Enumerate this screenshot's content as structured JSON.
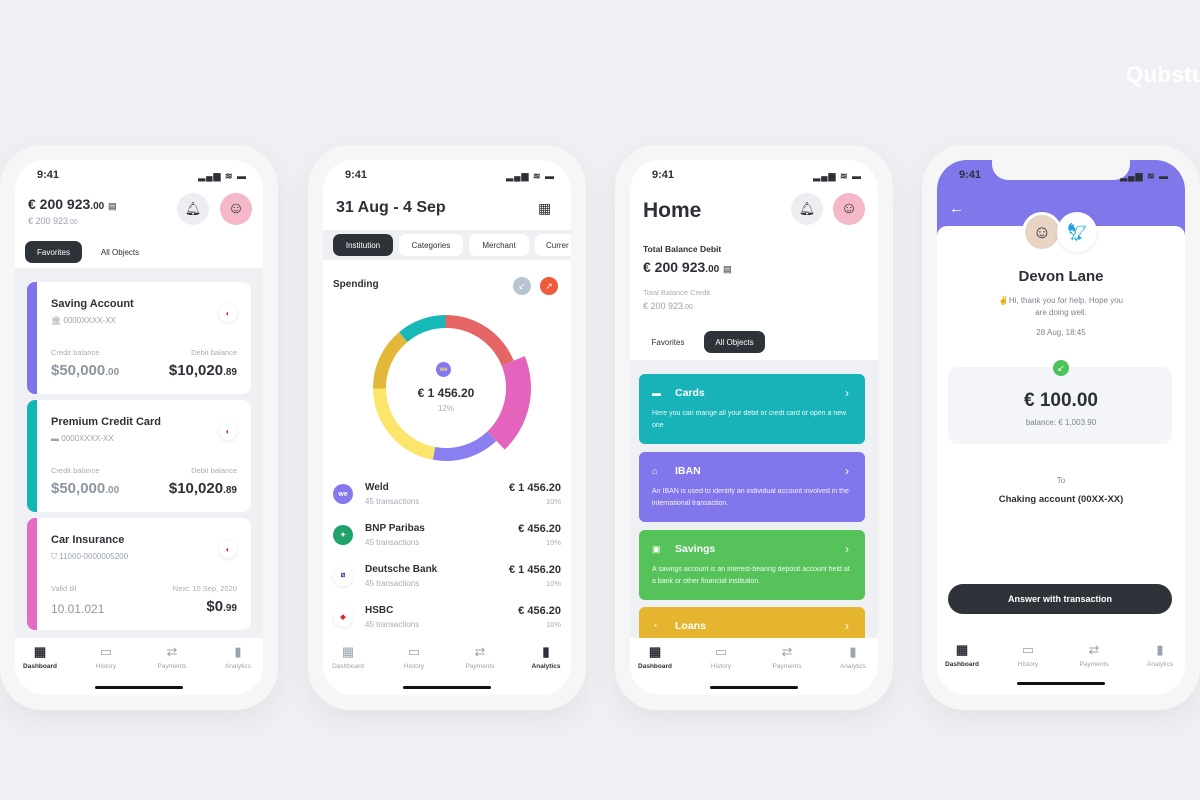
{
  "brand": "Qubstu",
  "status": {
    "time": "9:41",
    "signal": "▂▄▆ ≋ ▬"
  },
  "nav": [
    {
      "label": "Dashboard",
      "icon": "▦"
    },
    {
      "label": "History",
      "icon": "▭"
    },
    {
      "label": "Payments",
      "icon": "⇄"
    },
    {
      "label": "Analytics",
      "icon": "▮"
    }
  ],
  "dashboard": {
    "balance_main": "€ 200 923",
    "balance_main_cents": ".00",
    "balance_sub": "€ 200 923",
    "balance_sub_cents": ".00",
    "tabs": [
      "Favorites",
      "All Objects"
    ],
    "active_tab": "Favorites",
    "cards": [
      {
        "title": "Saving Account",
        "number": "0000XXXX-XX",
        "icon": "bank-icon",
        "left_label": "Credit balance",
        "left_value": "$50,000",
        "left_cents": ".00",
        "right_label": "Debit balance",
        "right_value": "$10,020",
        "right_cents": ".89",
        "color": "#7f74ee"
      },
      {
        "title": "Premium Credit Card",
        "number": "0000XXXX-XX",
        "icon": "card-icon",
        "left_label": "Credit balance",
        "left_value": "$50,000",
        "left_cents": ".00",
        "right_label": "Debit balance",
        "right_value": "$10,020",
        "right_cents": ".89",
        "color": "#13b5b5"
      },
      {
        "title": "Car Insurance",
        "number": "11000-0000005200",
        "icon": "shield-icon",
        "left_label": "Valid till",
        "left_value": "10.01.021",
        "left_cents": "",
        "right_label": "Next: 10 Sep, 2020",
        "right_value": "$0",
        "right_cents": ".99",
        "color": "#e46ac4"
      }
    ],
    "active_nav": "Dashboard"
  },
  "analytics": {
    "date_range": "31 Aug - 4 Sep",
    "tabs": [
      "Institution",
      "Categories",
      "Merchant",
      "Currer"
    ],
    "active_tab": "Institution",
    "section": "Spending",
    "center_amount": "€ 1 456.20",
    "center_pct": "12%",
    "center_logo": "we",
    "donut": [
      {
        "color": "#17b8b8",
        "share": 11
      },
      {
        "color": "#e56464",
        "share": 19
      },
      {
        "color": "#e463bd",
        "share": 19,
        "highlight": true
      },
      {
        "color": "#8a7ff0",
        "share": 15
      },
      {
        "color": "#fbe56a",
        "share": 22
      },
      {
        "color": "#e3b83a",
        "share": 14
      }
    ],
    "rows": [
      {
        "name": "Weld",
        "sub": "45 transactions",
        "amount": "€ 1 456.20",
        "pct": "10%",
        "logo": "we",
        "color": "#8478ee"
      },
      {
        "name": "BNP Paribas",
        "sub": "45 transactions",
        "amount": "€ 456.20",
        "pct": "10%",
        "logo": "✦",
        "color": "#1fa36a"
      },
      {
        "name": "Deutsche Bank",
        "sub": "45 transactions",
        "amount": "€ 1 456.20",
        "pct": "10%",
        "logo": "⧄",
        "color": "#ffffff"
      },
      {
        "name": "HSBC",
        "sub": "45 transactions",
        "amount": "€ 456.20",
        "pct": "10%",
        "logo": "◆",
        "color": "#ffffff"
      }
    ],
    "active_nav": "Analytics"
  },
  "home": {
    "title": "Home",
    "debit_label": "Total Balance Debit",
    "debit_value": "€ 200 923",
    "debit_cents": ".00",
    "credit_label": "Total Balance Credit",
    "credit_value": "€ 200 923",
    "credit_cents": ".00",
    "tabs": [
      "Favorites",
      "All Objects"
    ],
    "active_tab": "All Objects",
    "tiles": [
      {
        "title": "Cards",
        "icon": "▬",
        "desc": "Here you can mange all your debit or credt card or open a new one",
        "color": "#17b3b8"
      },
      {
        "title": "IBAN",
        "icon": "⌂",
        "desc": "An IBAN is used to identify an individual account involved in the international transaction.",
        "color": "#8176ec"
      },
      {
        "title": "Savings",
        "icon": "▣",
        "desc": "A savings account is an interest-bearing deposit account held at a bank or other financial institution.",
        "color": "#55c25a"
      },
      {
        "title": "Loans",
        "icon": "◔",
        "desc": "",
        "color": "#e5b530"
      }
    ],
    "active_nav": "Dashboard"
  },
  "transaction": {
    "name": "Devon Lane",
    "message": "✌Hi, thank you for help. Hope you are doing well.",
    "datetime": "28 Aug, 18:45",
    "amount": "€ 100.00",
    "balance": "balance:  € 1,003.90",
    "to_label": "To",
    "account": "Chaking account (00XX-XX)",
    "button": "Answer with transaction",
    "header_color": "#7f77ea",
    "active_nav": "Dashboard"
  }
}
